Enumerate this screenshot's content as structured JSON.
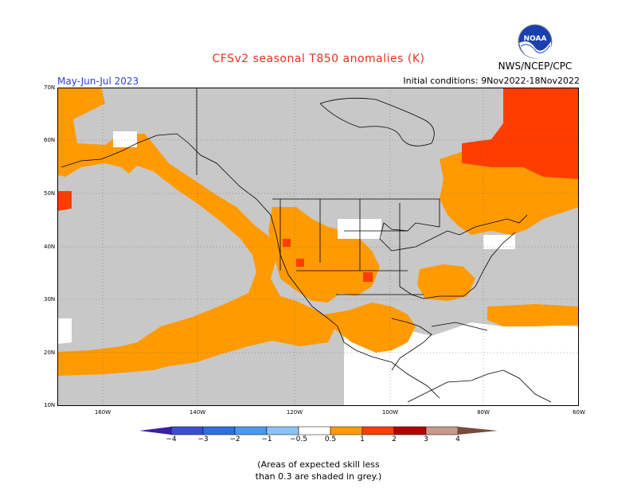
{
  "title": "CFSv2 seasonal T850 anomalies (K)",
  "season": "May-Jun-Jul 2023",
  "initial_conditions": "Initial conditions: 9Nov2022-18Nov2022",
  "agency": "NWS/NCEP/CPC",
  "logo_text": "NOAA",
  "lat_labels": [
    "70N",
    "60N",
    "50N",
    "40N",
    "30N",
    "20N",
    "10N"
  ],
  "lon_labels": [
    "160W",
    "140W",
    "120W",
    "100W",
    "80W",
    "60W"
  ],
  "colorbar": {
    "labels": [
      "−4",
      "−3",
      "−2",
      "−1",
      "−0.5",
      "0.5",
      "1",
      "2",
      "3",
      "4"
    ],
    "colors": [
      "#3a1fa3",
      "#3a4fd0",
      "#2f6fe0",
      "#4b99ee",
      "#8ec2f5",
      "#ffffff",
      "#ff9a00",
      "#ff3d00",
      "#b40000",
      "#c89a8c",
      "#7a4a3a"
    ]
  },
  "note_line1": "(Areas of expected skill less",
  "note_line2": "than 0.3 are shaded in grey.)",
  "colors": {
    "grey": "#c8c8c8",
    "orange": "#ff9a00",
    "red": "#ff3d00",
    "white": "#ffffff"
  }
}
